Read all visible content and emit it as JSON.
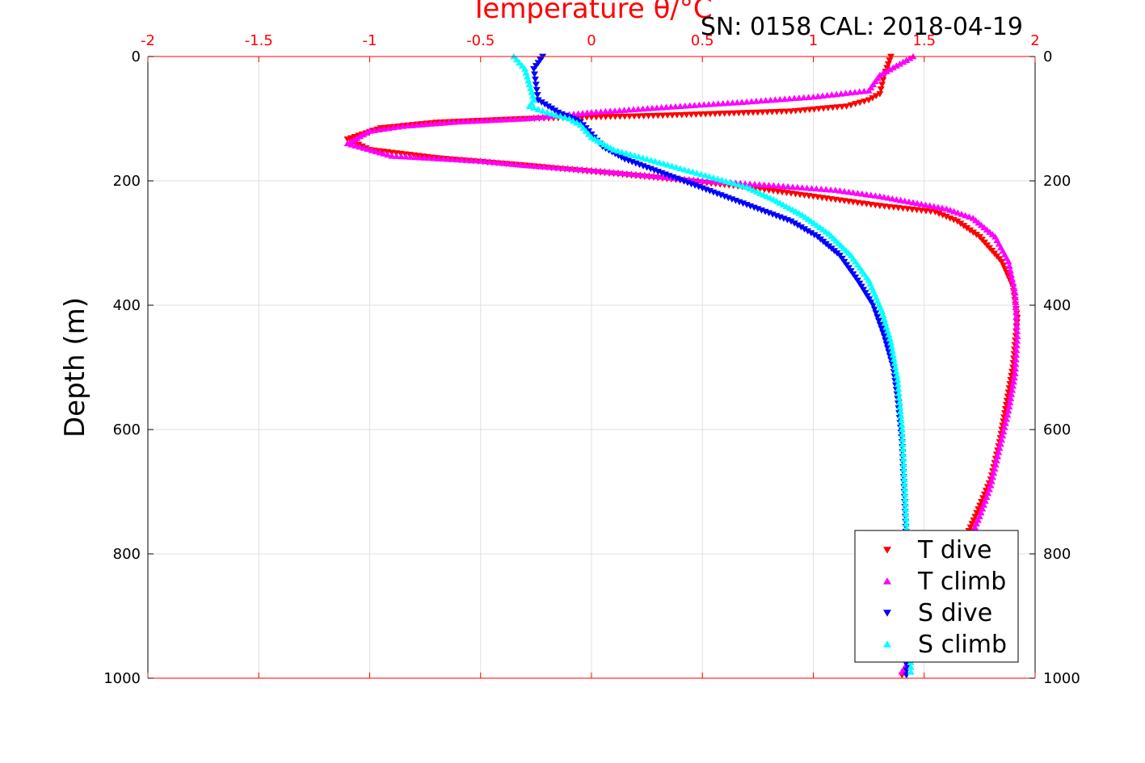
{
  "chart_data": {
    "type": "scatter",
    "xlabel": "Temperature θ/°C",
    "ylabel": "Depth (m)",
    "annotation": "SN: 0158  CAL: 2018-04-19",
    "xlim": [
      -2,
      2
    ],
    "ylim": [
      0,
      1000
    ],
    "y_reversed": true,
    "xticks": [
      -2,
      -1.5,
      -1,
      -0.5,
      0,
      0.5,
      1,
      1.5,
      2
    ],
    "xtick_labels": [
      "-2",
      "-1.5",
      "-1",
      "-0.5",
      "0",
      "0.5",
      "1",
      "1.5",
      "2"
    ],
    "yticks": [
      0,
      200,
      400,
      600,
      800,
      1000
    ],
    "ytick_labels": [
      "0",
      "200",
      "400",
      "600",
      "800",
      "1000"
    ],
    "grid": true,
    "legend_position": "bottom-right",
    "axis_color": "#ff0000",
    "series": [
      {
        "name": "T dive",
        "marker": "triangle-down",
        "color": "#ff0000",
        "x": [
          1.35,
          1.32,
          1.3,
          1.25,
          1.15,
          0.9,
          0.3,
          -0.3,
          -0.7,
          -0.95,
          -1.1,
          -1.0,
          -0.7,
          -0.3,
          0.0,
          0.3,
          0.7,
          1.0,
          1.3,
          1.55,
          1.65,
          1.75,
          1.85,
          1.9,
          1.92,
          1.9,
          1.87,
          1.84,
          1.8,
          1.73,
          1.68,
          1.64,
          1.6,
          1.55,
          1.5,
          1.47,
          1.43,
          1.4
        ],
        "y": [
          0,
          30,
          60,
          70,
          80,
          88,
          95,
          100,
          106,
          115,
          133,
          150,
          163,
          175,
          185,
          195,
          210,
          225,
          240,
          250,
          265,
          290,
          330,
          370,
          420,
          500,
          560,
          620,
          680,
          740,
          780,
          820,
          860,
          900,
          930,
          960,
          980,
          995
        ]
      },
      {
        "name": "T climb",
        "marker": "triangle-up",
        "color": "#ff00ff",
        "x": [
          1.45,
          1.3,
          1.25,
          1.0,
          0.7,
          0.4,
          0.0,
          -0.3,
          -0.6,
          -0.85,
          -1.0,
          -1.1,
          -0.9,
          -0.5,
          -0.3,
          0.0,
          0.3,
          0.5,
          0.8,
          1.1,
          1.3,
          1.45,
          1.6,
          1.72,
          1.82,
          1.88,
          1.91,
          1.92,
          1.91,
          1.88,
          1.84,
          1.8,
          1.75,
          1.7,
          1.62,
          1.56,
          1.5,
          1.45,
          1.4
        ],
        "y": [
          0,
          30,
          55,
          65,
          73,
          80,
          90,
          100,
          105,
          112,
          120,
          140,
          160,
          168,
          175,
          183,
          193,
          200,
          207,
          215,
          225,
          235,
          245,
          260,
          290,
          330,
          380,
          450,
          510,
          570,
          630,
          690,
          740,
          780,
          830,
          880,
          920,
          960,
          990
        ]
      },
      {
        "name": "S dive",
        "marker": "triangle-down",
        "color": "#0000ff",
        "x": [
          -0.22,
          -0.26,
          -0.25,
          -0.24,
          -0.15,
          -0.05,
          0.0,
          0.05,
          0.15,
          0.3,
          0.45,
          0.6,
          0.75,
          0.9,
          1.02,
          1.12,
          1.2,
          1.27,
          1.32,
          1.36,
          1.38,
          1.4,
          1.41,
          1.42,
          1.43,
          1.43,
          1.42
        ],
        "y": [
          0,
          20,
          45,
          70,
          90,
          105,
          125,
          145,
          165,
          185,
          205,
          225,
          245,
          265,
          290,
          320,
          360,
          400,
          450,
          500,
          550,
          620,
          700,
          780,
          860,
          940,
          995
        ]
      },
      {
        "name": "S climb",
        "marker": "triangle-up",
        "color": "#00ffff",
        "x": [
          -0.35,
          -0.3,
          -0.28,
          -0.26,
          -0.28,
          -0.2,
          -0.1,
          -0.05,
          0.0,
          0.1,
          0.25,
          0.4,
          0.55,
          0.7,
          0.82,
          0.95,
          1.07,
          1.17,
          1.25,
          1.31,
          1.35,
          1.38,
          1.4,
          1.41,
          1.42,
          1.43,
          1.44
        ],
        "y": [
          0,
          20,
          45,
          70,
          80,
          90,
          100,
          110,
          130,
          150,
          165,
          180,
          195,
          210,
          230,
          255,
          285,
          320,
          360,
          410,
          460,
          520,
          600,
          680,
          760,
          850,
          990
        ]
      }
    ]
  }
}
